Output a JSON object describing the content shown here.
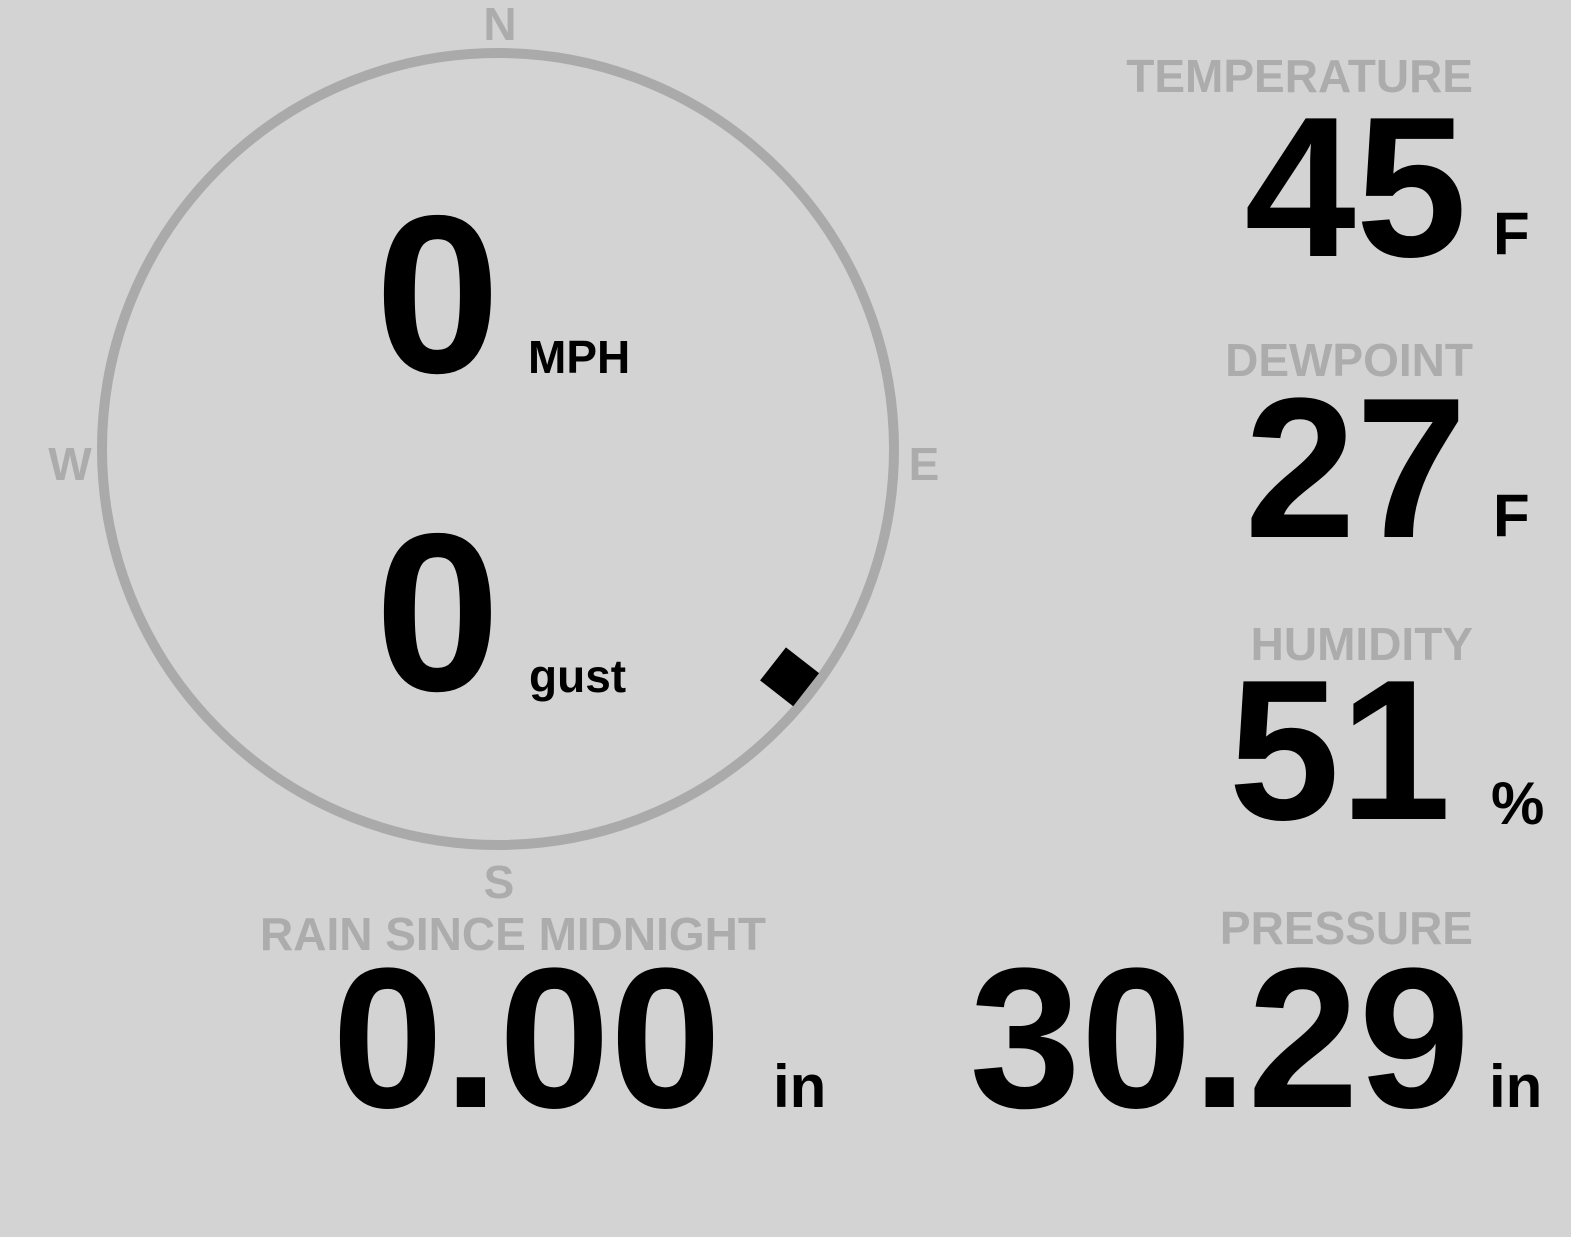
{
  "wind": {
    "speed": "0",
    "speed_unit": "MPH",
    "gust": "0",
    "gust_label": "gust",
    "direction_degrees": 128,
    "compass": {
      "north": "N",
      "east": "E",
      "south": "S",
      "west": "W"
    }
  },
  "temperature": {
    "label": "TEMPERATURE",
    "value": "45",
    "unit": "F"
  },
  "dewpoint": {
    "label": "DEWPOINT",
    "value": "27",
    "unit": "F"
  },
  "humidity": {
    "label": "HUMIDITY",
    "value": "51",
    "unit": "%"
  },
  "rain": {
    "label": "RAIN SINCE MIDNIGHT",
    "value": "0.00",
    "unit": "in"
  },
  "pressure": {
    "label": "PRESSURE",
    "value": "30.29",
    "unit": "in"
  },
  "colors": {
    "background": "#d3d3d3",
    "label": "#acacac",
    "value": "#000000",
    "dial": "#aaaaaa"
  }
}
